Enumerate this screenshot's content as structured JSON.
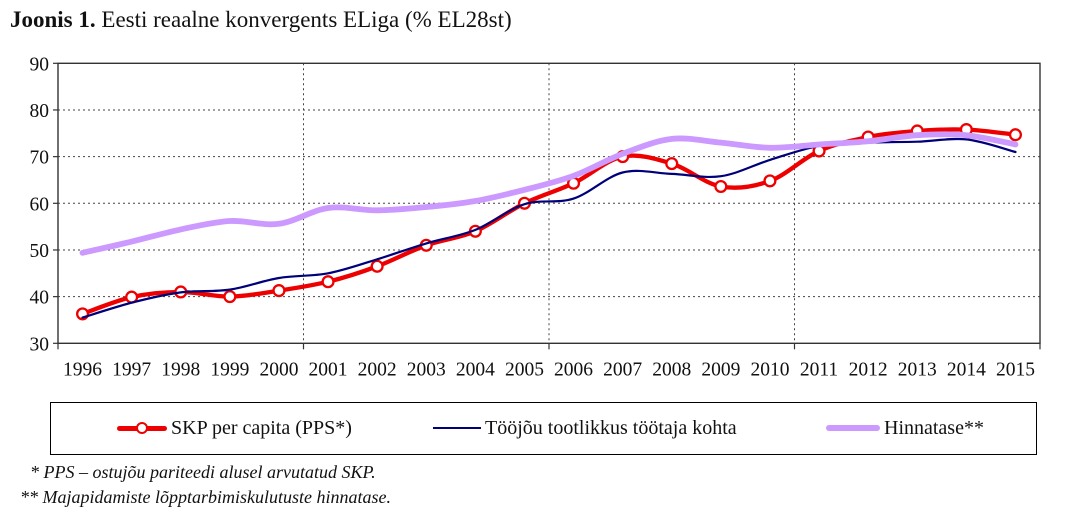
{
  "title": {
    "prefix": "Joonis 1.",
    "rest": " Eesti reaalne konvergents ELiga (% EL28st)"
  },
  "chart_data": {
    "type": "line",
    "title": "Joonis 1. Eesti reaalne konvergents ELiga (% EL28st)",
    "categories": [
      "1996",
      "1997",
      "1998",
      "1999",
      "2000",
      "2001",
      "2002",
      "2003",
      "2004",
      "2005",
      "2006",
      "2007",
      "2008",
      "2009",
      "2010",
      "2011",
      "2012",
      "2013",
      "2014",
      "2015"
    ],
    "series": [
      {
        "name": "SKP per capita (PPS*)",
        "color": "#ee0000",
        "stroke_width": 4.3,
        "marker": "circle",
        "values": [
          36.3,
          39.9,
          41.0,
          40.0,
          41.3,
          43.2,
          46.5,
          51.0,
          54.0,
          60.0,
          64.3,
          70.0,
          68.5,
          63.6,
          64.8,
          71.2,
          74.2,
          75.5,
          75.8,
          74.7
        ]
      },
      {
        "name": "Tööjõu tootlikkus töötaja kohta",
        "color": "#00007a",
        "stroke_width": 2.2,
        "marker": "none",
        "values": [
          35.5,
          38.7,
          40.9,
          41.5,
          44.0,
          45.0,
          48.0,
          51.4,
          54.3,
          59.8,
          61.0,
          66.6,
          66.3,
          65.8,
          69.3,
          72.3,
          73.0,
          73.2,
          73.7,
          71.0
        ]
      },
      {
        "name": "Hinnatase**",
        "color": "#cc99ff",
        "stroke_width": 5.8,
        "marker": "none",
        "values": [
          49.4,
          51.8,
          54.4,
          56.2,
          55.6,
          59.0,
          58.5,
          59.2,
          60.5,
          62.9,
          65.9,
          70.6,
          73.8,
          73.0,
          71.9,
          72.6,
          73.3,
          74.6,
          74.6,
          72.6
        ]
      }
    ],
    "xlabel": "",
    "ylabel": "",
    "ylim": [
      30,
      90
    ],
    "ytick_step": 10,
    "grid": "dotted-horizontal-and-5yr-vertical",
    "x_gridline_boundaries": [
      5,
      10,
      15
    ],
    "legend_position": "bottom-boxed",
    "smoothed_lines": true
  },
  "footnotes": [
    "* PPS – ostujõu pariteedi alusel arvutatud SKP.",
    "** Majapidamiste lõpptarbimiskulutuste hinnatase."
  ]
}
